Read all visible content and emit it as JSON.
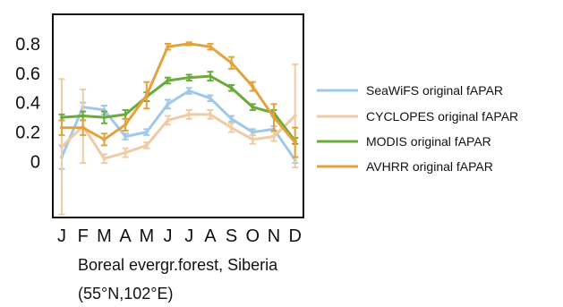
{
  "chart_data": {
    "type": "line",
    "categories": [
      "J",
      "F",
      "M",
      "A",
      "M",
      "J",
      "J",
      "A",
      "S",
      "O",
      "N",
      "D"
    ],
    "yticks": [
      "0.8",
      "0.6",
      "0.4",
      "0.2",
      "0"
    ],
    "ylim": [
      -0.38,
      1.0
    ],
    "grid": false,
    "legend_position": "right",
    "series": [
      {
        "name": "SeaWiFS original fAPAR",
        "color": "#9ec9ea",
        "values": [
          0.03,
          0.37,
          0.35,
          0.17,
          0.2,
          0.39,
          0.48,
          0.43,
          0.29,
          0.2,
          0.22,
          0.01
        ],
        "errors": [
          0.08,
          0.03,
          0.03,
          0.02,
          0.02,
          0.03,
          0.02,
          0.02,
          0.02,
          0.02,
          0.02,
          0.02
        ]
      },
      {
        "name": "CYCLOPES original fAPAR",
        "color": "#f0cba4",
        "values": [
          0.1,
          0.24,
          0.02,
          0.06,
          0.11,
          0.28,
          0.32,
          0.32,
          0.23,
          0.15,
          0.17,
          0.31
        ],
        "errors": [
          0.46,
          0.25,
          0.03,
          0.03,
          0.02,
          0.03,
          0.03,
          0.03,
          0.03,
          0.03,
          0.03,
          0.35
        ]
      },
      {
        "name": "MODIS original fAPAR",
        "color": "#6aab3c",
        "values": [
          0.3,
          0.31,
          0.3,
          0.32,
          0.44,
          0.55,
          0.57,
          0.58,
          0.5,
          0.37,
          0.33,
          0.14
        ],
        "errors": [
          0.02,
          0.03,
          0.04,
          0.03,
          0.03,
          0.02,
          0.02,
          0.03,
          0.02,
          0.02,
          0.02,
          0.02
        ]
      },
      {
        "name": "AVHRR original fAPAR",
        "color": "#e4a23c",
        "values": [
          0.23,
          0.23,
          0.15,
          0.25,
          0.45,
          0.78,
          0.8,
          0.78,
          0.67,
          0.51,
          0.3,
          0.13
        ],
        "errors": [
          0.05,
          0.05,
          0.04,
          0.04,
          0.09,
          0.02,
          0.01,
          0.02,
          0.04,
          0.03,
          0.09,
          0.1
        ]
      }
    ]
  },
  "caption": {
    "line1": "Boreal evergr.forest, Siberia",
    "line2": "(55°N,102°E)"
  }
}
